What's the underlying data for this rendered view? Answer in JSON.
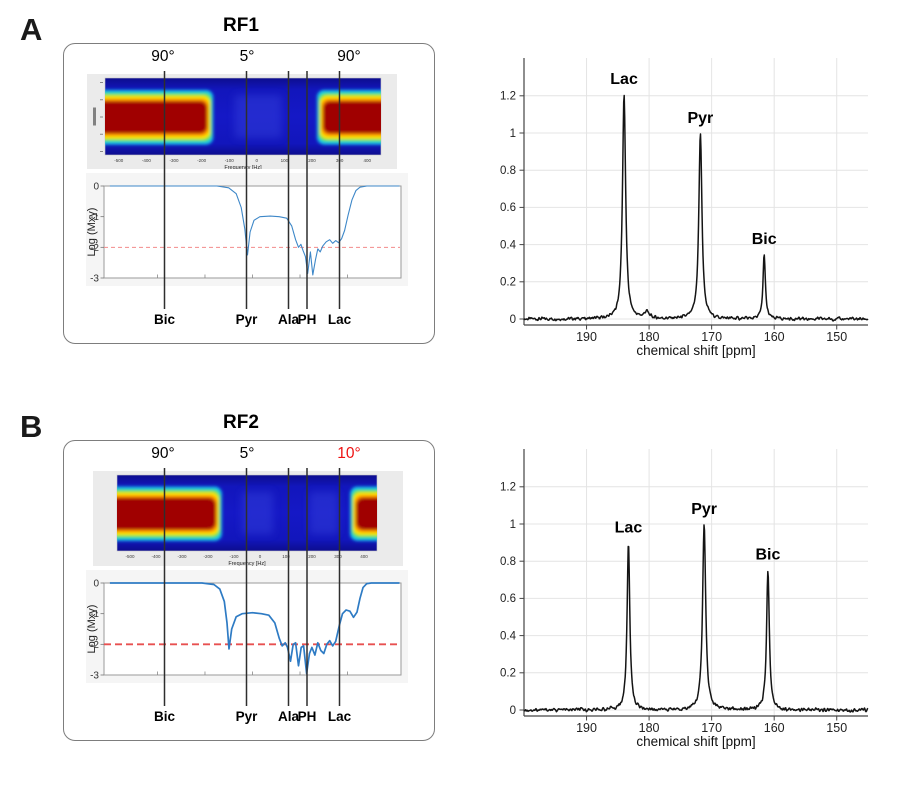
{
  "panels": [
    {
      "letter": "A",
      "title": "RF1",
      "flip_angles": [
        {
          "label": "90°",
          "color": "#000000"
        },
        {
          "label": "5°",
          "color": "#000000"
        },
        {
          "label": "90°",
          "color": "#000000"
        }
      ],
      "pulse_profile": {
        "x_axis_label": "Frequency [Hz]",
        "x_tick_labels": [
          "-500",
          "-400",
          "-300",
          "-200",
          "-100",
          "0",
          "100",
          "200",
          "300",
          "400"
        ],
        "excitation_bands": [
          [
            0,
            0.37
          ],
          [
            0.79,
            1
          ]
        ],
        "faint_bands": [
          [
            0.47,
            0.64
          ]
        ]
      },
      "metabolite_labels": [
        {
          "label": "Bic",
          "x": 163.5
        },
        {
          "label": "Pyr",
          "x": 245.5
        },
        {
          "label": "Ala",
          "x": 287.5
        },
        {
          "label": "PH",
          "x": 306
        },
        {
          "label": "Lac",
          "x": 338.5
        }
      ]
    },
    {
      "letter": "B",
      "title": "RF2",
      "flip_angles": [
        {
          "label": "90°",
          "color": "#000000"
        },
        {
          "label": "5°",
          "color": "#000000"
        },
        {
          "label": "10°",
          "color": "#ee1111"
        }
      ],
      "pulse_profile": {
        "x_axis_label": "Frequency [Hz]",
        "x_tick_labels": [
          "-500",
          "-400",
          "-300",
          "-200",
          "-100",
          "0",
          "100",
          "200",
          "300",
          "400"
        ],
        "excitation_bands": [
          [
            0,
            0.38
          ],
          [
            0.92,
            1
          ]
        ],
        "faint_bands": [
          [
            0.48,
            0.6
          ],
          [
            0.74,
            0.85
          ]
        ]
      },
      "metabolite_labels": [
        {
          "label": "Bic",
          "x": 163.5
        },
        {
          "label": "Pyr",
          "x": 245.5
        },
        {
          "label": "Ala",
          "x": 287.5
        },
        {
          "label": "PH",
          "x": 306
        },
        {
          "label": "Lac",
          "x": 338.5
        }
      ]
    }
  ],
  "chart_data": [
    {
      "panel": "A",
      "kind": "excitation-log-profile",
      "type": "line",
      "y_label": "Log (Mxy)",
      "y_ticks": [
        "0",
        "-1",
        "-2",
        "-3"
      ],
      "y_range": [
        -3,
        0
      ],
      "threshold_line_y": -2,
      "curve_points": [
        [
          0.02,
          0
        ],
        [
          0.38,
          0
        ],
        [
          0.42,
          -0.06
        ],
        [
          0.445,
          -0.25
        ],
        [
          0.462,
          -0.7
        ],
        [
          0.474,
          -1.4
        ],
        [
          0.483,
          -2.25
        ],
        [
          0.492,
          -1.5
        ],
        [
          0.505,
          -1.12
        ],
        [
          0.525,
          -1.0
        ],
        [
          0.56,
          -0.98
        ],
        [
          0.59,
          -1.0
        ],
        [
          0.615,
          -1.05
        ],
        [
          0.632,
          -1.3
        ],
        [
          0.645,
          -1.75
        ],
        [
          0.655,
          -2.0
        ],
        [
          0.663,
          -1.9
        ],
        [
          0.67,
          -2.1
        ],
        [
          0.678,
          -2.3
        ],
        [
          0.686,
          -2.85
        ],
        [
          0.695,
          -2.15
        ],
        [
          0.703,
          -2.9
        ],
        [
          0.712,
          -2.4
        ],
        [
          0.72,
          -2.05
        ],
        [
          0.728,
          -2.15
        ],
        [
          0.737,
          -1.95
        ],
        [
          0.748,
          -1.82
        ],
        [
          0.76,
          -1.75
        ],
        [
          0.77,
          -1.87
        ],
        [
          0.78,
          -1.78
        ],
        [
          0.79,
          -1.85
        ],
        [
          0.8,
          -1.72
        ],
        [
          0.81,
          -1.45
        ],
        [
          0.822,
          -0.95
        ],
        [
          0.835,
          -0.45
        ],
        [
          0.848,
          -0.15
        ],
        [
          0.862,
          -0.04
        ],
        [
          0.885,
          0
        ],
        [
          0.995,
          0
        ]
      ]
    },
    {
      "panel": "A",
      "kind": "spectrum",
      "type": "line",
      "x_label": "chemical shift [ppm]",
      "x_ticks": [
        "190",
        "180",
        "170",
        "160",
        "150"
      ],
      "x_range_ppm": [
        200,
        145
      ],
      "y_ticks": [
        "0",
        "0.2",
        "0.4",
        "0.6",
        "0.8",
        "1",
        "1.2"
      ],
      "y_max": 1.4,
      "noise_amplitude": 0.012,
      "peaks": [
        {
          "label": "Lac",
          "ppm": 184.0,
          "height": 1.21,
          "hwhm": 0.3
        },
        {
          "label": "Pyr",
          "ppm": 171.8,
          "height": 1.0,
          "hwhm": 0.3
        },
        {
          "label": "Bic",
          "ppm": 161.6,
          "height": 0.35,
          "hwhm": 0.22
        }
      ],
      "minor_peaks": [
        {
          "ppm": 180.4,
          "height": 0.035,
          "hwhm": 0.45
        }
      ]
    },
    {
      "panel": "B",
      "kind": "excitation-log-profile",
      "type": "line",
      "y_label": "Log (Mxy)",
      "y_ticks": [
        "0",
        "-1",
        "-2",
        "-3"
      ],
      "y_range": [
        -3,
        0
      ],
      "threshold_line_y": -2,
      "curve_points": [
        [
          0.02,
          0
        ],
        [
          0.33,
          0
        ],
        [
          0.37,
          -0.05
        ],
        [
          0.39,
          -0.2
        ],
        [
          0.405,
          -0.6
        ],
        [
          0.414,
          -1.3
        ],
        [
          0.421,
          -2.15
        ],
        [
          0.43,
          -1.5
        ],
        [
          0.445,
          -1.1
        ],
        [
          0.465,
          -1.0
        ],
        [
          0.5,
          -0.97
        ],
        [
          0.53,
          -1.0
        ],
        [
          0.555,
          -1.05
        ],
        [
          0.575,
          -1.3
        ],
        [
          0.59,
          -1.8
        ],
        [
          0.6,
          -2.05
        ],
        [
          0.61,
          -1.95
        ],
        [
          0.618,
          -2.1
        ],
        [
          0.628,
          -2.55
        ],
        [
          0.637,
          -2.0
        ],
        [
          0.645,
          -1.95
        ],
        [
          0.655,
          -2.7
        ],
        [
          0.664,
          -2.1
        ],
        [
          0.672,
          -2.05
        ],
        [
          0.682,
          -2.95
        ],
        [
          0.692,
          -2.3
        ],
        [
          0.7,
          -2.1
        ],
        [
          0.71,
          -2.35
        ],
        [
          0.72,
          -1.95
        ],
        [
          0.73,
          -2.2
        ],
        [
          0.74,
          -2.3
        ],
        [
          0.75,
          -2.0
        ],
        [
          0.76,
          -1.88
        ],
        [
          0.77,
          -2.05
        ],
        [
          0.78,
          -1.9
        ],
        [
          0.792,
          -1.4
        ],
        [
          0.803,
          -1.0
        ],
        [
          0.815,
          -0.88
        ],
        [
          0.828,
          -0.92
        ],
        [
          0.84,
          -1.12
        ],
        [
          0.852,
          -0.95
        ],
        [
          0.862,
          -0.5
        ],
        [
          0.872,
          -0.15
        ],
        [
          0.885,
          -0.02
        ],
        [
          0.9,
          0
        ],
        [
          0.995,
          0
        ]
      ]
    },
    {
      "panel": "B",
      "kind": "spectrum",
      "type": "line",
      "x_label": "chemical shift [ppm]",
      "x_ticks": [
        "190",
        "180",
        "170",
        "160",
        "150"
      ],
      "x_range_ppm": [
        200,
        145
      ],
      "y_ticks": [
        "0",
        "0.2",
        "0.4",
        "0.6",
        "0.8",
        "1",
        "1.2"
      ],
      "y_max": 1.4,
      "noise_amplitude": 0.013,
      "peaks": [
        {
          "label": "Lac",
          "ppm": 183.3,
          "height": 0.9,
          "hwhm": 0.26
        },
        {
          "label": "Pyr",
          "ppm": 171.2,
          "height": 1.0,
          "hwhm": 0.3
        },
        {
          "label": "Bic",
          "ppm": 161.0,
          "height": 0.755,
          "hwhm": 0.26
        }
      ],
      "minor_peaks": []
    }
  ]
}
